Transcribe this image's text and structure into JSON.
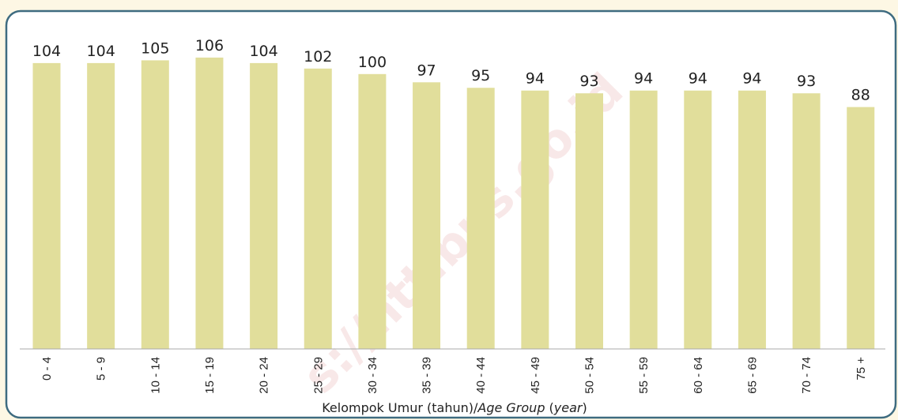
{
  "chart_data": {
    "type": "bar",
    "categories": [
      "0 - 4",
      "5 - 9",
      "10 - 14",
      "15 - 19",
      "20 - 24",
      "25 - 29",
      "30 - 34",
      "35 - 39",
      "40 - 44",
      "45 - 49",
      "50 - 54",
      "55 - 59",
      "60 - 64",
      "65 - 69",
      "70 - 74",
      "75 +"
    ],
    "values": [
      104,
      104,
      105,
      106,
      104,
      102,
      100,
      97,
      95,
      94,
      93,
      94,
      94,
      94,
      93,
      88
    ],
    "color": "#e1de9b",
    "ylim": [
      0,
      110
    ],
    "xlabel": [
      "Kelompok Umur (tahun)/",
      "Age Group",
      " (",
      "year",
      ")"
    ],
    "watermark": "s://ntt.bps.go.id"
  }
}
